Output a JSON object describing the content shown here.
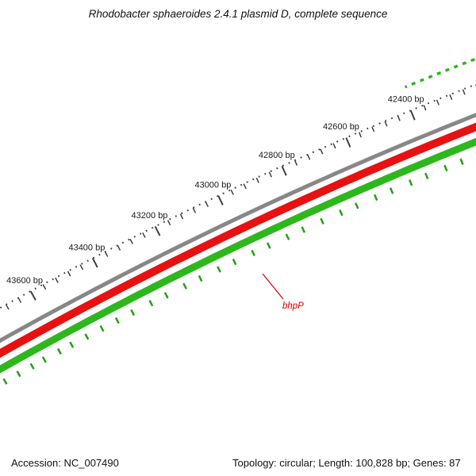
{
  "title": "Rhodobacter sphaeroides 2.4.1 plasmid D, complete sequence",
  "status_bar": {
    "accession": "Accession: NC_007490",
    "summary": "Topology: circular; Length: 100,828 bp; Genes: 87"
  },
  "map": {
    "unit_suffix": " bp",
    "ruler": {
      "labeled_ticks": [
        42400,
        42600,
        42800,
        43000,
        43200,
        43400,
        43600
      ],
      "major_interval": 200,
      "minor_interval": 40,
      "render_start": 42100,
      "render_end": 43850,
      "dot_color": "#3f3f3f",
      "tick_color": "#3f3f3f",
      "label_color": "#1a1a1a"
    },
    "rings": {
      "backbone": {
        "color": "#878787"
      },
      "red_band": {
        "color": "#e81111"
      },
      "green_band": {
        "color": "#2eb71d"
      },
      "outer_dashes": {
        "color": "#2eb71d",
        "start": 42100,
        "end": 42390
      },
      "inner_ticks": {
        "color": "#1fa30d",
        "positions": [
          42220,
          42270,
          42320,
          42370,
          42430,
          42480,
          42540,
          42590,
          42650,
          42700,
          42760,
          42820,
          42870,
          42930,
          42980,
          43040,
          43090,
          43150,
          43200,
          43260,
          43310,
          43370,
          43420,
          43470,
          43520,
          43570,
          43610,
          43660,
          43700,
          43745,
          43790
        ]
      }
    },
    "feature_label": {
      "text": "bhpP",
      "color": "#dd0000"
    }
  }
}
